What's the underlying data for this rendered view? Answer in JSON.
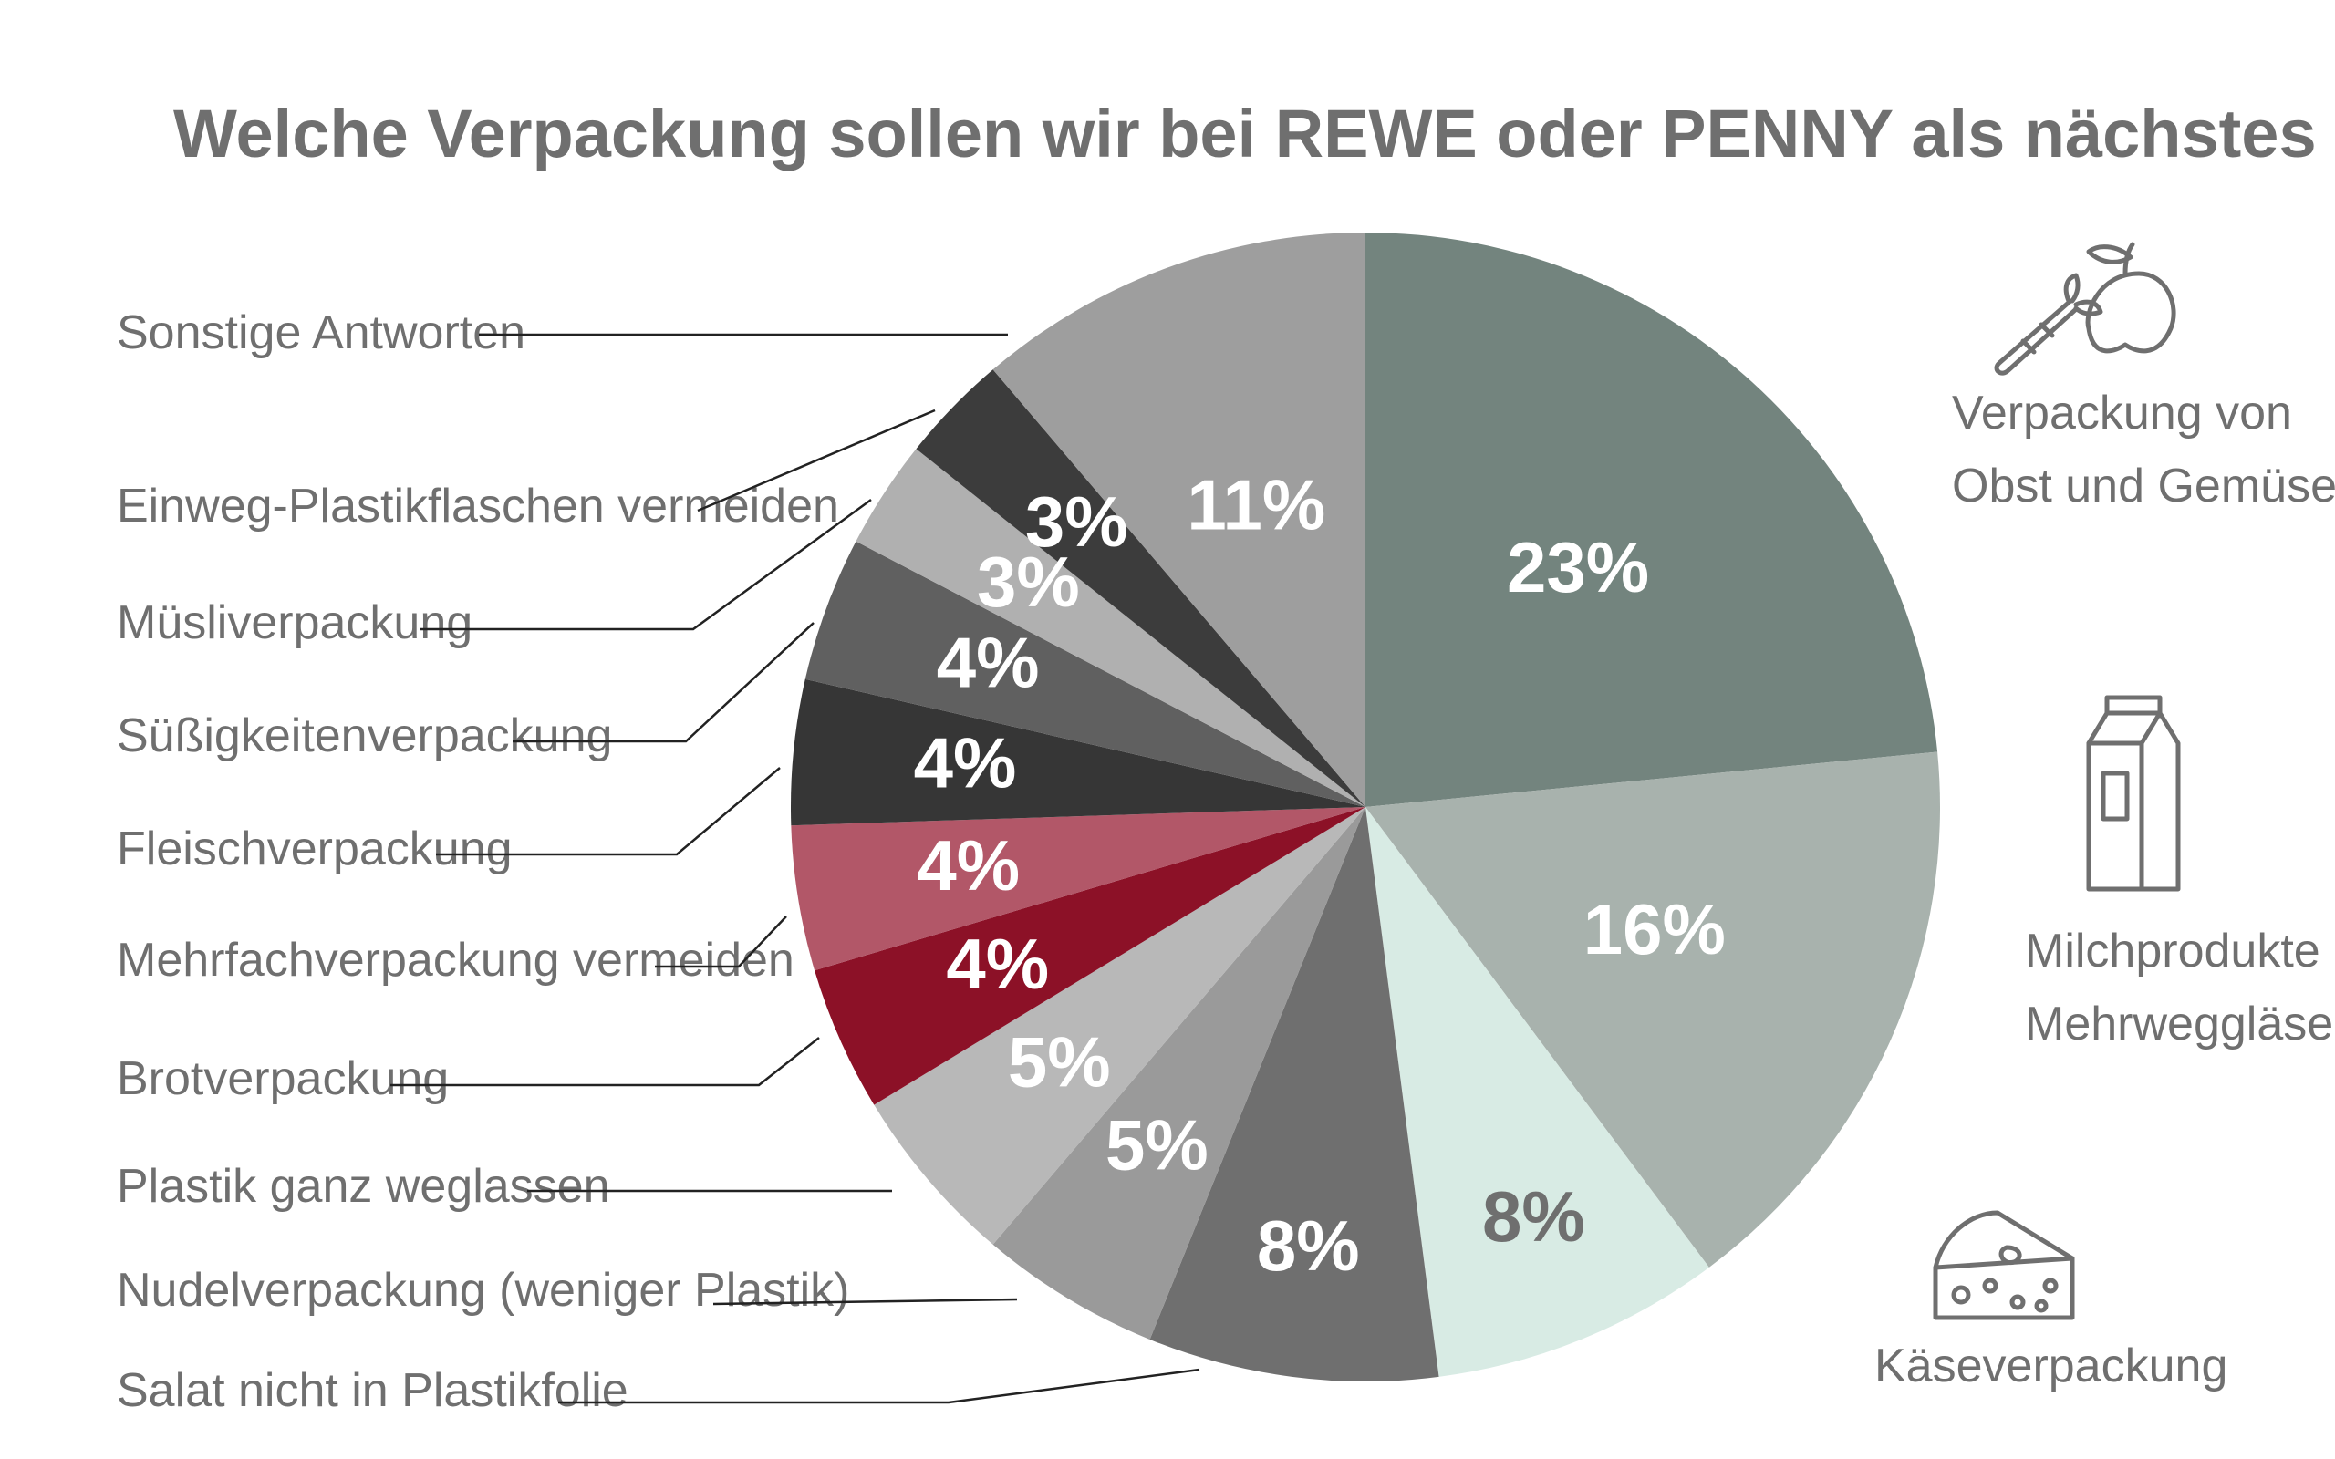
{
  "chart_data": {
    "type": "pie",
    "title": "Welche Verpackung sollen wir bei REWE oder PENNY als nächstes verbessern?",
    "slices": [
      {
        "label": "Verpackung von Obst und Gemüse",
        "value": 23,
        "text": "23%",
        "color": "#73847e",
        "textColor": "#ffffff"
      },
      {
        "label": "Milchprodukte in Mehrweggläsern",
        "value": 16,
        "text": "16%",
        "color": "#a8b2ad",
        "textColor": "#ffffff"
      },
      {
        "label": "Käseverpackung",
        "value": 8,
        "text": "8%",
        "color": "#d8ebe4",
        "textColor": "#6f6f6f"
      },
      {
        "label": "Salat nicht in Plastikfolie",
        "value": 8,
        "text": "8%",
        "color": "#6f6f6f",
        "textColor": "#ffffff"
      },
      {
        "label": "Nudelverpackung (weniger Plastik)",
        "value": 5,
        "text": "5%",
        "color": "#9a9a9a",
        "textColor": "#ffffff"
      },
      {
        "label": "Plastik ganz weglassen",
        "value": 5,
        "text": "5%",
        "color": "#b8b8b8",
        "textColor": "#ffffff"
      },
      {
        "label": "Brotverpackung",
        "value": 4,
        "text": "4%",
        "color": "#8c1127",
        "textColor": "#ffffff"
      },
      {
        "label": "Mehrfachverpackung vermeiden",
        "value": 4,
        "text": "4%",
        "color": "#b25768",
        "textColor": "#ffffff"
      },
      {
        "label": "Fleischverpackung",
        "value": 4,
        "text": "4%",
        "color": "#363636",
        "textColor": "#ffffff"
      },
      {
        "label": "Süßigkeitenverpackung",
        "value": 4,
        "text": "4%",
        "color": "#606060",
        "textColor": "#ffffff"
      },
      {
        "label": "Müsliverpackung",
        "value": 3,
        "text": "3%",
        "color": "#b0b0b0",
        "textColor": "#ffffff"
      },
      {
        "label": "Einweg-Plastikflaschen vermeiden",
        "value": 3,
        "text": "3%",
        "color": "#3c3c3c",
        "textColor": "#ffffff"
      },
      {
        "label": "Sonstige Antworten",
        "value": 11,
        "text": "11%",
        "color": "#9e9e9e",
        "textColor": "#ffffff"
      }
    ],
    "left_labels": [
      "Sonstige Antworten",
      "Einweg-Plastikflaschen vermeiden",
      "Müsliverpackung",
      "Süßigkeitenverpackung",
      "Fleischverpackung",
      "Mehrfachverpackung vermeiden",
      "Brotverpackung",
      "Plastik ganz weglassen",
      "Nudelverpackung (weniger Plastik)",
      "Salat nicht in Plastikfolie"
    ],
    "right_labels": {
      "obst_line1": "Verpackung von",
      "obst_line2": "Obst und Gemüse",
      "milch_line1": "Milchprodukte in",
      "milch_line2": "Mehrweggläsern",
      "kaese": "Käseverpackung"
    },
    "icons": [
      "carrot-apple-icon",
      "milk-carton-icon",
      "cheese-icon"
    ]
  }
}
